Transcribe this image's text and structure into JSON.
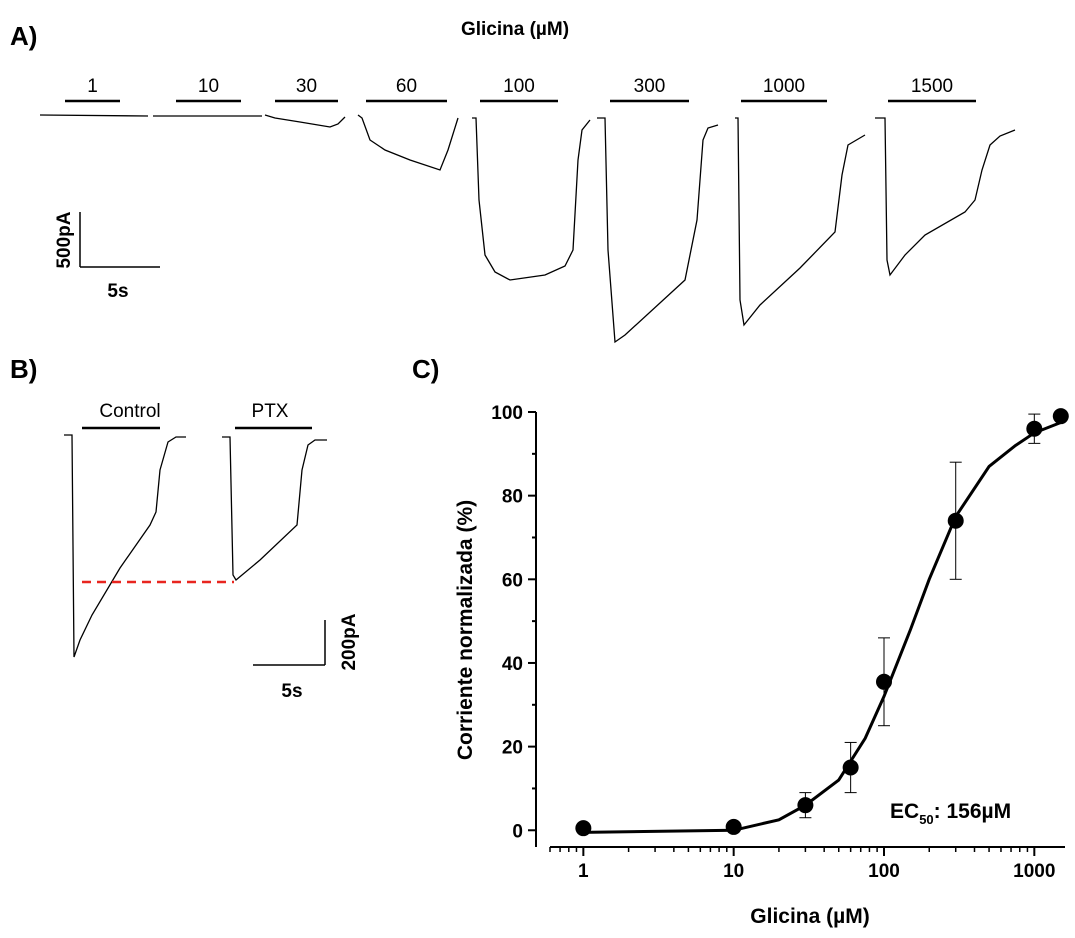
{
  "panel_labels": [
    "A)",
    "B)",
    "C)"
  ],
  "panel_a": {
    "title": "Glicina (µM)",
    "concentrations": [
      "1",
      "10",
      "30",
      "60",
      "100",
      "300",
      "1000",
      "1500"
    ],
    "scale_y": "500pA",
    "scale_x": "5s"
  },
  "panel_b": {
    "conditions": [
      "Control",
      "PTX"
    ],
    "scale_y": "200pA",
    "scale_x": "5s"
  },
  "chart_data": {
    "type": "scatter",
    "x_label": "Glicina (µM)",
    "y_label": "Corriente normalizada (%)",
    "x": [
      1,
      10,
      30,
      60,
      100,
      300,
      1000,
      1500
    ],
    "values": [
      0.5,
      0.8,
      6,
      15,
      35.5,
      74,
      96,
      99
    ],
    "errors": [
      0,
      0,
      3,
      6,
      10.5,
      14,
      3.5,
      0
    ],
    "fit": {
      "x": [
        1,
        10,
        20,
        30,
        50,
        75,
        100,
        150,
        200,
        300,
        500,
        750,
        1000,
        1500
      ],
      "values": [
        -0.5,
        0,
        2.5,
        6,
        12,
        22,
        32,
        48,
        60,
        75,
        87,
        92,
        95,
        97.5
      ]
    },
    "xlim": [
      0.6,
      1600
    ],
    "ylim": [
      -4,
      100
    ],
    "xticks": [
      1,
      10,
      100,
      1000
    ],
    "yticks": [
      0,
      20,
      40,
      60,
      80,
      100
    ],
    "log_x": true,
    "color": "#000000",
    "annotation": {
      "prefix": "EC",
      "subscript": "50",
      "suffix": ": 156µM"
    }
  }
}
